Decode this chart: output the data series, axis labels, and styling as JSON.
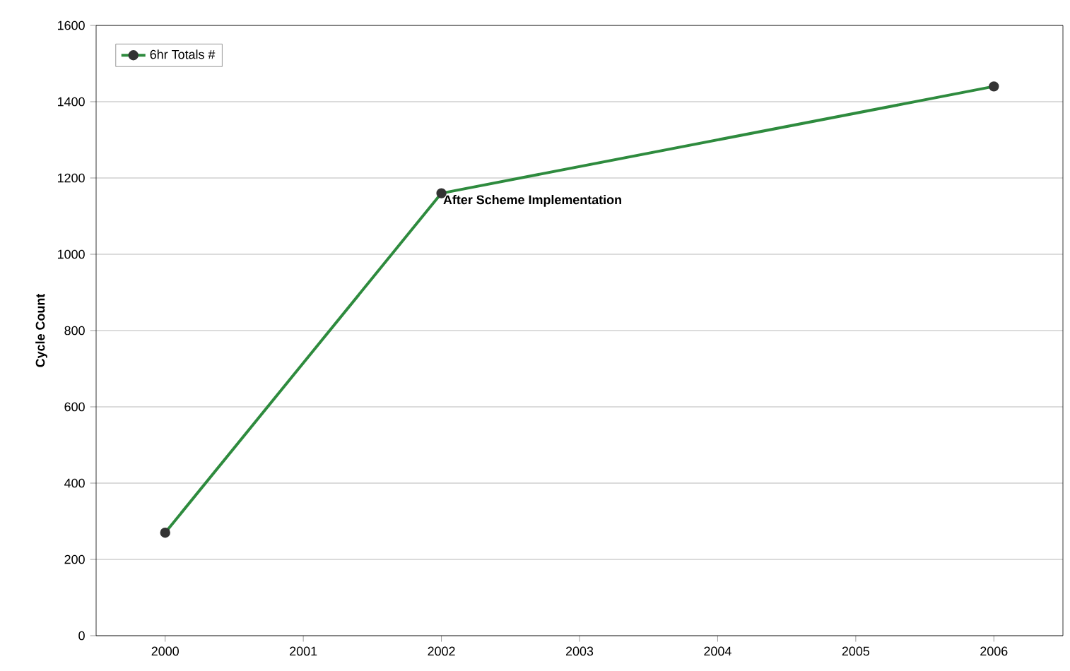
{
  "chart_data": {
    "type": "line",
    "ylabel": "Cycle Count",
    "x": [
      2000,
      2002,
      2006
    ],
    "series": [
      {
        "name": "6hr Totals #",
        "color": "#2e8b3e",
        "values": [
          270,
          1160,
          1440
        ]
      }
    ],
    "xlim": [
      1999.5,
      2006.5
    ],
    "xticks": [
      2000,
      2001,
      2002,
      2003,
      2004,
      2005,
      2006
    ],
    "ylim": [
      0,
      1600
    ],
    "yticks": [
      0,
      200,
      400,
      600,
      800,
      1000,
      1200,
      1400,
      1600
    ],
    "grid": "y",
    "legend": "top left",
    "marker": "circle",
    "line_style": "solid",
    "annotations": [
      {
        "text": "After Scheme Implementation",
        "x": 2002,
        "y": 1160
      }
    ]
  }
}
